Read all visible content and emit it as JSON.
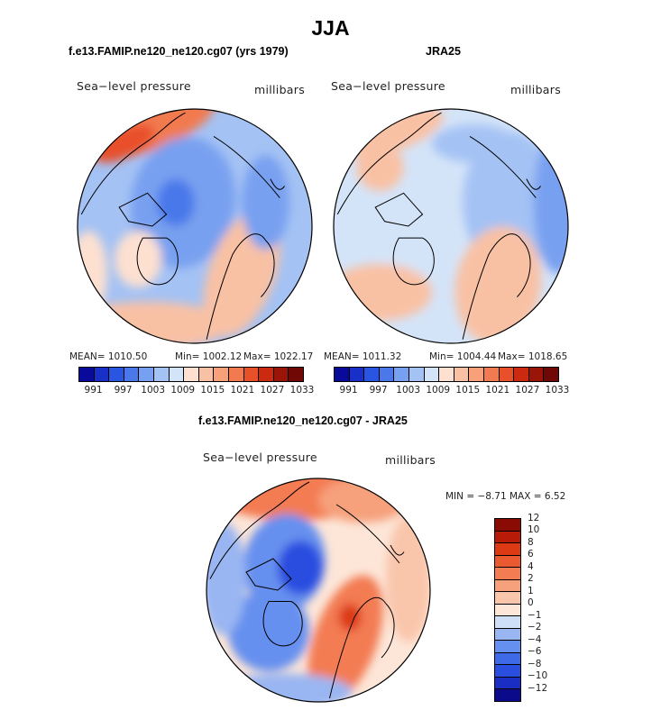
{
  "figure": {
    "title": "JJA"
  },
  "panels": [
    {
      "title": "f.e13.FAMIP.ne120_ne120.cg07 (yrs 1979)",
      "variable": "Sea−level pressure",
      "units": "millibars",
      "stats": {
        "mean": "MEAN= 1010.50",
        "min": "Min= 1002.12",
        "max": "Max= 1022.17"
      }
    },
    {
      "title": "JRA25",
      "variable": "Sea−level pressure",
      "units": "millibars",
      "stats": {
        "mean": "MEAN= 1011.32",
        "min": "Min= 1004.44",
        "max": "Max= 1018.65"
      }
    },
    {
      "title": "f.e13.FAMIP.ne120_ne120.cg07 - JRA25",
      "variable": "Sea−level pressure",
      "units": "millibars",
      "stats": {
        "minmax": "MIN =  −8.71  MAX =   6.52"
      }
    }
  ],
  "colorbar_abs": {
    "colors": [
      "#0a0a9a",
      "#1830c8",
      "#2a55e0",
      "#4a78ea",
      "#78a0f0",
      "#a4c2f4",
      "#d4e4f8",
      "#fde0d0",
      "#f9c1a4",
      "#f7a07a",
      "#f27a50",
      "#e8502a",
      "#cc2a10",
      "#9a1408",
      "#700806"
    ],
    "tick_labels": [
      "991",
      "997",
      "1003",
      "1009",
      "1015",
      "1021",
      "1027",
      "1033"
    ]
  },
  "colorbar_diff": {
    "colors": [
      "#0a0a8a",
      "#1a2ec4",
      "#2a4ee0",
      "#3e6ae8",
      "#6690ef",
      "#9ab6f2",
      "#cfdff7",
      "#fde6d8",
      "#f9c6ac",
      "#f6a07c",
      "#f37c52",
      "#ea5a30",
      "#dc3a14",
      "#b81c08",
      "#8a0a04"
    ],
    "tick_labels": [
      "−12",
      "−10",
      "−8",
      "−6",
      "−4",
      "−2",
      "−1",
      "0",
      "1",
      "2",
      "4",
      "6",
      "8",
      "10",
      "12"
    ]
  },
  "chart_data": [
    {
      "type": "heatmap",
      "title": "f.e13.FAMIP.ne120_ne120.cg07 (yrs 1979)",
      "field": "Sea-level pressure",
      "units": "millibars",
      "season": "JJA",
      "mean": 1010.5,
      "min": 1002.12,
      "max": 1022.17,
      "levels": [
        991,
        997,
        1003,
        1009,
        1015,
        1021,
        1027,
        1033
      ]
    },
    {
      "type": "heatmap",
      "title": "JRA25",
      "field": "Sea-level pressure",
      "units": "millibars",
      "season": "JJA",
      "mean": 1011.32,
      "min": 1004.44,
      "max": 1018.65,
      "levels": [
        991,
        997,
        1003,
        1009,
        1015,
        1021,
        1027,
        1033
      ]
    },
    {
      "type": "heatmap",
      "title": "f.e13.FAMIP.ne120_ne120.cg07 - JRA25",
      "field": "Sea-level pressure difference",
      "units": "millibars",
      "min": -8.71,
      "max": 6.52,
      "levels": [
        -12,
        -10,
        -8,
        -6,
        -4,
        -2,
        -1,
        0,
        1,
        2,
        4,
        6,
        8,
        10,
        12
      ]
    }
  ]
}
